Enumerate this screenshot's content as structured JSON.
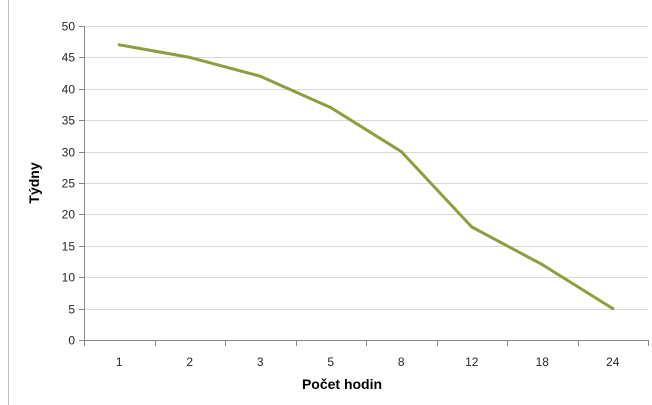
{
  "chart_data": {
    "type": "line",
    "title": "",
    "xlabel": "Počet hodin",
    "ylabel": "Týdny",
    "categories": [
      "1",
      "2",
      "3",
      "5",
      "8",
      "12",
      "18",
      "24"
    ],
    "series": [
      {
        "values": [
          47,
          45,
          42,
          37,
          30,
          18,
          12,
          5
        ]
      }
    ],
    "ylim": [
      0,
      50
    ],
    "yticks": [
      0,
      5,
      10,
      15,
      20,
      25,
      30,
      35,
      40,
      45,
      50
    ],
    "grid": true,
    "legend": "none",
    "colors": {
      "line": "#8b9f3f",
      "grid": "#d9d9d9",
      "axis": "#868686",
      "frame": "#bfbfbf"
    }
  }
}
